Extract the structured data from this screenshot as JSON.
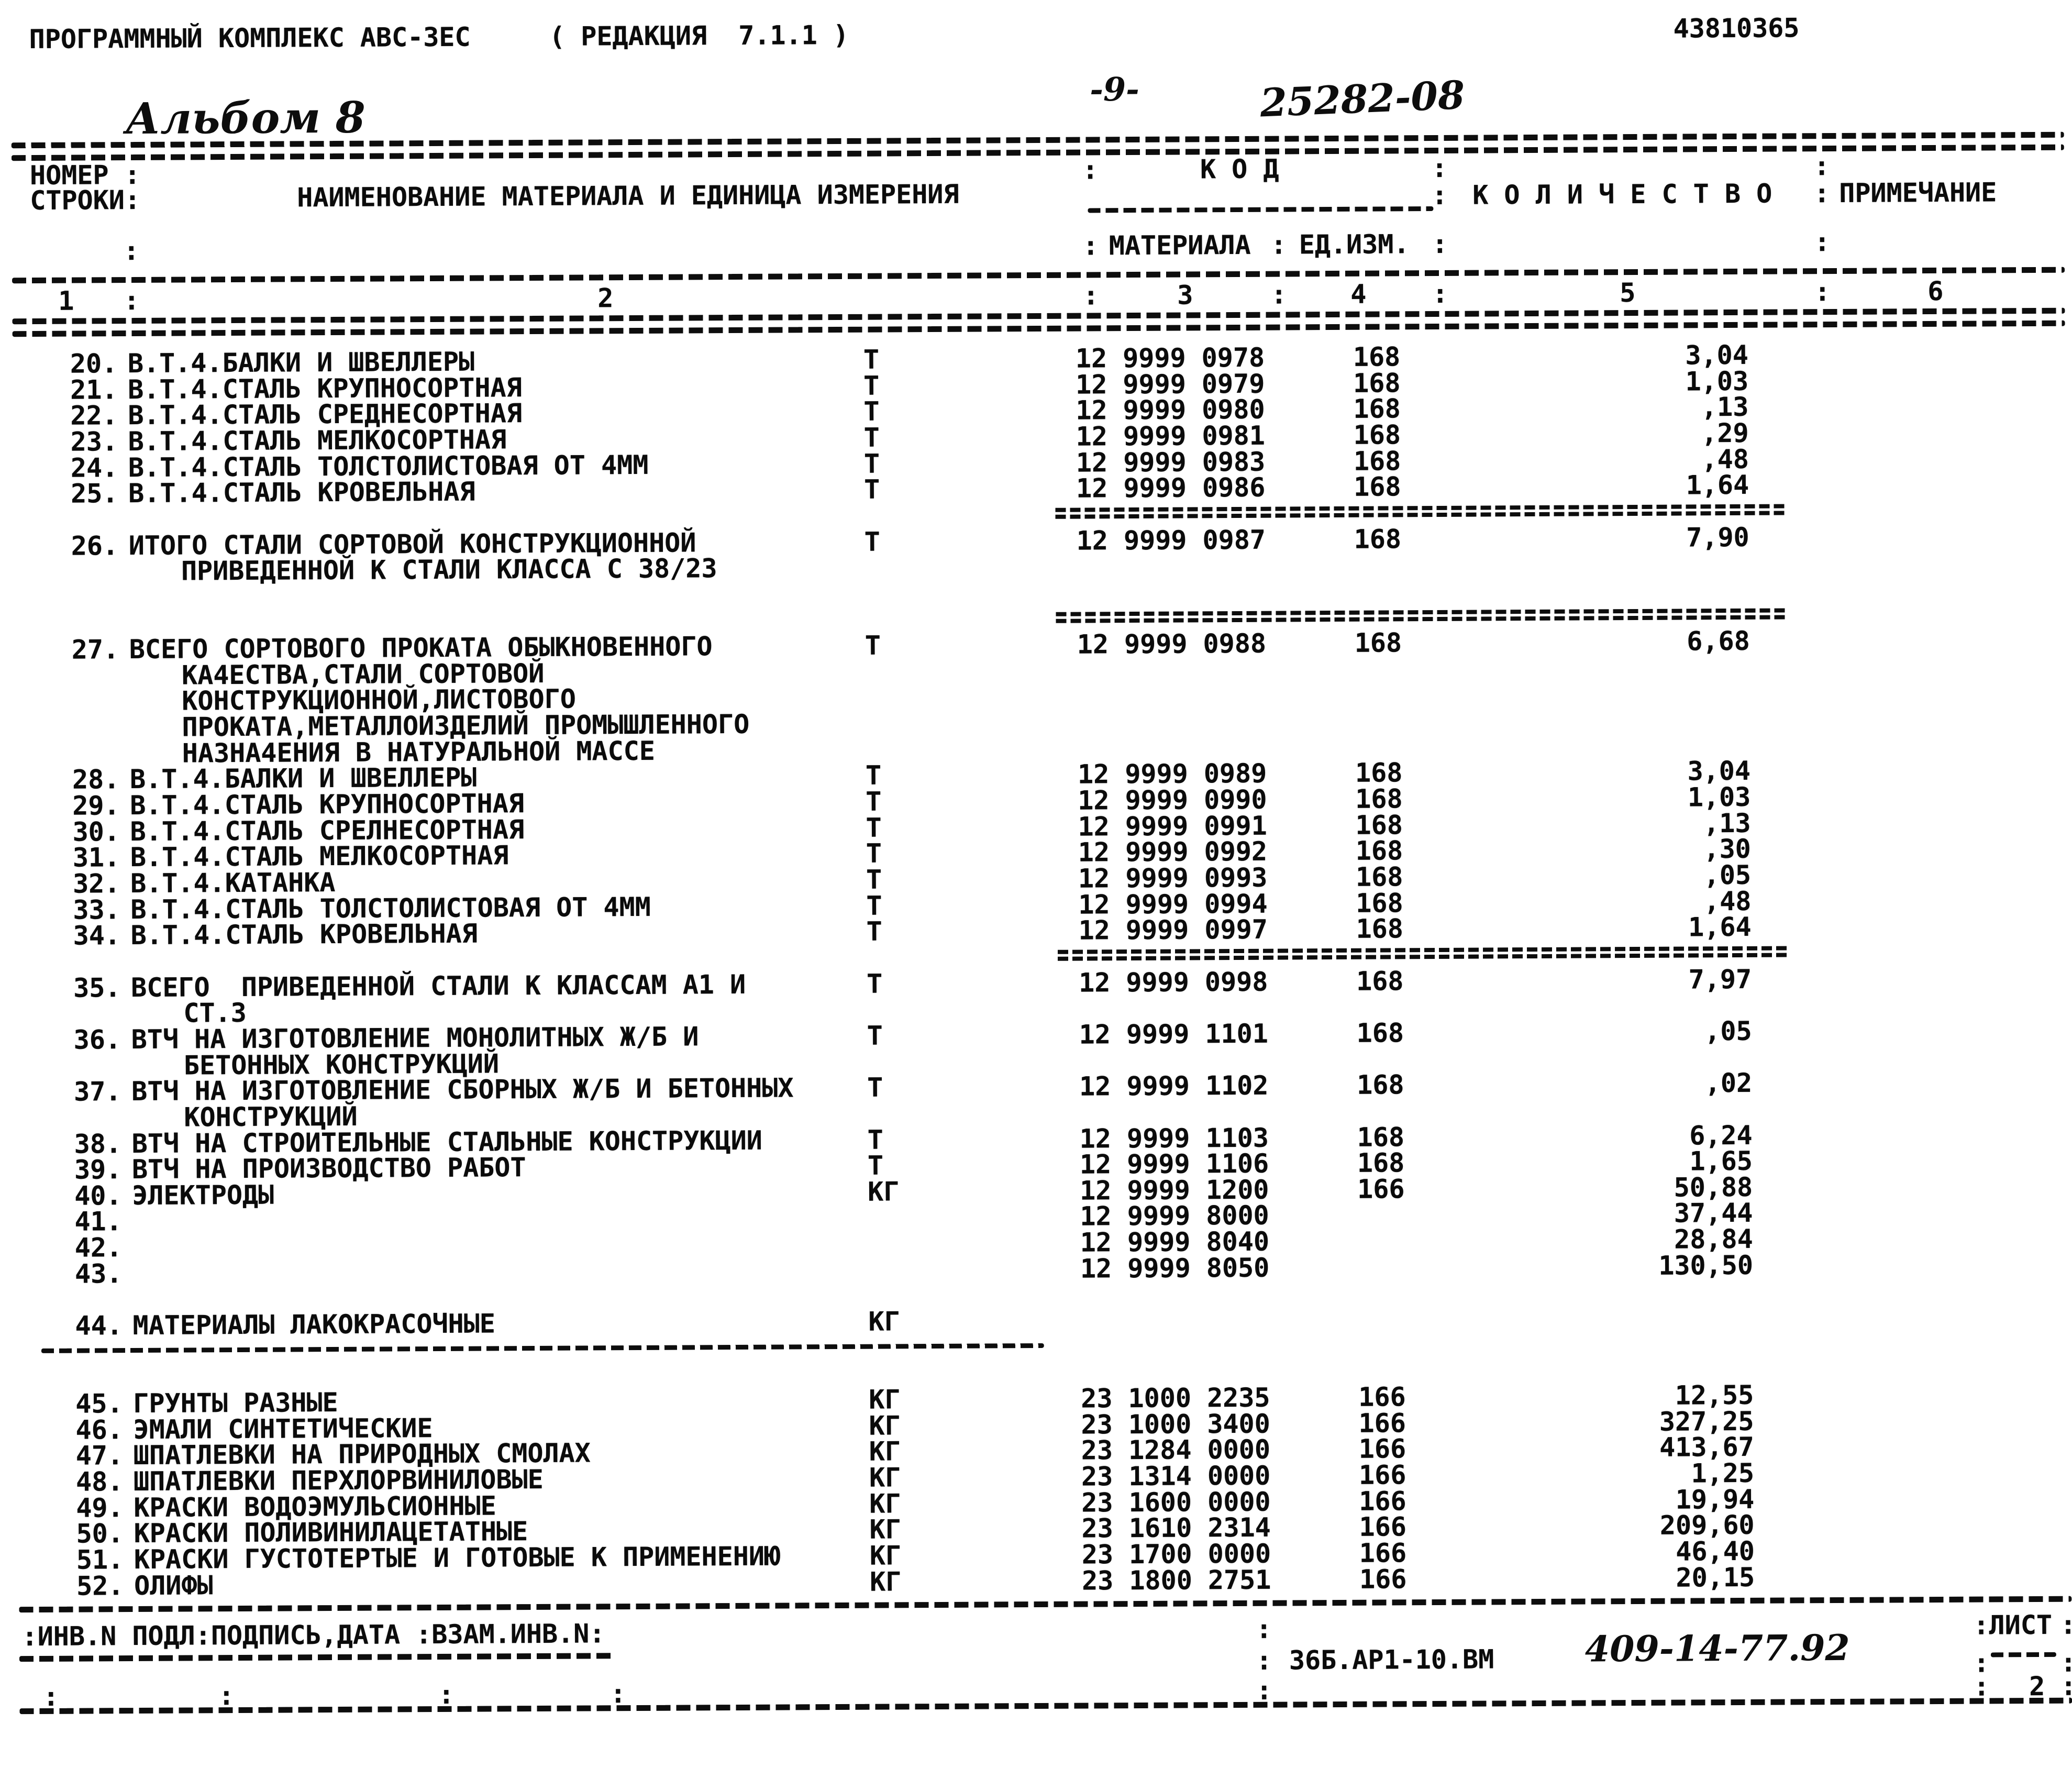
{
  "glyphs": {
    "colon": ":"
  },
  "header": {
    "title": "ПРОГРАММНЫЙ КОМПЛЕКС АВС-3ЕС     ( РЕДАКЦИЯ  7.1.1 )",
    "doc_number": "43810365",
    "album_note": "Альбом 8",
    "page_note": "-9-",
    "code_note": "25282-08"
  },
  "table_header": {
    "rownum_line1": "НОМЕР :",
    "rownum_line2": "СТРОКИ:",
    "name_col": "НАИМЕНОВАНИЕ МАТЕРИАЛА И ЕДИНИЦА ИЗМЕРЕНИЯ",
    "code_group": "К О Д",
    "code_material": "МАТЕРИАЛА",
    "code_unit": "ЕД.ИЗМ.",
    "quantity_col": "К О Л И Ч Е С Т В О",
    "note_col": "ПРИМЕЧАНИЕ",
    "col_numbers": [
      "1",
      "2",
      "3",
      "4",
      "5",
      "6"
    ]
  },
  "table_lines": [
    {
      "t": "row",
      "num": "20.",
      "name": "В.Т.4.БАЛКИ И ШВЕЛЛЕРЫ",
      "unit": "Т",
      "code": "12 9999 0978",
      "uc": "168",
      "qty": "3,04"
    },
    {
      "t": "row",
      "num": "21.",
      "name": "В.Т.4.СТАЛЬ КРУПНОСОРТНАЯ",
      "unit": "Т",
      "code": "12 9999 0979",
      "uc": "168",
      "qty": "1,03"
    },
    {
      "t": "row",
      "num": "22.",
      "name": "В.Т.4.СТАЛЬ СРЕДНЕСОРТНАЯ",
      "unit": "Т",
      "code": "12 9999 0980",
      "uc": "168",
      "qty": ",13"
    },
    {
      "t": "row",
      "num": "23.",
      "name": "В.Т.4.СТАЛЬ МЕЛКОСОРТНАЯ",
      "unit": "Т",
      "code": "12 9999 0981",
      "uc": "168",
      "qty": ",29"
    },
    {
      "t": "row",
      "num": "24.",
      "name": "В.Т.4.СТАЛЬ ТОЛСТОЛИСТОВАЯ ОТ 4ММ",
      "unit": "Т",
      "code": "12 9999 0983",
      "uc": "168",
      "qty": ",48"
    },
    {
      "t": "row",
      "num": "25.",
      "name": "В.Т.4.СТАЛЬ КРОВЕЛЬНАЯ",
      "unit": "Т",
      "code": "12 9999 0986",
      "uc": "168",
      "qty": "1,64"
    },
    {
      "t": "eq"
    },
    {
      "t": "row",
      "num": "26.",
      "name": "ИТОГО СТАЛИ СОРТОВОЙ КОНСТРУКЦИОННОЙ",
      "unit": "Т",
      "code": "12 9999 0987",
      "uc": "168",
      "qty": "7,90"
    },
    {
      "t": "cont",
      "name": "ПРИВЕДЕННОЙ К СТАЛИ КЛАССА С 38/23"
    },
    {
      "t": "blank"
    },
    {
      "t": "eq"
    },
    {
      "t": "row",
      "num": "27.",
      "name": "ВСЕГО СОРТОВОГО ПРОКАТА ОБЫКНОВЕННОГО",
      "unit": "Т",
      "code": "12 9999 0988",
      "uc": "168",
      "qty": "6,68"
    },
    {
      "t": "cont",
      "name": "КА4ЕСТВА,СТАЛИ СОРТОВОЙ"
    },
    {
      "t": "cont",
      "name": "КОНСТРУКЦИОННОЙ,ЛИСТОВОГО"
    },
    {
      "t": "cont",
      "name": "ПРОКАТА,МЕТАЛЛОИЗДЕЛИЙ ПРОМЫШЛЕННОГО"
    },
    {
      "t": "cont",
      "name": "НАЗНА4ЕНИЯ В НАТУРАЛЬНОЙ МАССЕ"
    },
    {
      "t": "row",
      "num": "28.",
      "name": "В.Т.4.БАЛКИ И ШВЕЛЛЕРЫ",
      "unit": "Т",
      "code": "12 9999 0989",
      "uc": "168",
      "qty": "3,04"
    },
    {
      "t": "row",
      "num": "29.",
      "name": "В.Т.4.СТАЛЬ КРУПНОСОРТНАЯ",
      "unit": "Т",
      "code": "12 9999 0990",
      "uc": "168",
      "qty": "1,03"
    },
    {
      "t": "row",
      "num": "30.",
      "name": "В.Т.4.СТАЛЬ СРЕЛНЕСОРТНАЯ",
      "unit": "Т",
      "code": "12 9999 0991",
      "uc": "168",
      "qty": ",13"
    },
    {
      "t": "row",
      "num": "31.",
      "name": "В.Т.4.СТАЛЬ МЕЛКОСОРТНАЯ",
      "unit": "Т",
      "code": "12 9999 0992",
      "uc": "168",
      "qty": ",30"
    },
    {
      "t": "row",
      "num": "32.",
      "name": "В.Т.4.КАТАНКА",
      "unit": "Т",
      "code": "12 9999 0993",
      "uc": "168",
      "qty": ",05"
    },
    {
      "t": "row",
      "num": "33.",
      "name": "В.Т.4.СТАЛЬ ТОЛСТОЛИСТОВАЯ ОТ 4ММ",
      "unit": "Т",
      "code": "12 9999 0994",
      "uc": "168",
      "qty": ",48"
    },
    {
      "t": "row",
      "num": "34.",
      "name": "В.Т.4.СТАЛЬ КРОВЕЛЬНАЯ",
      "unit": "Т",
      "code": "12 9999 0997",
      "uc": "168",
      "qty": "1,64"
    },
    {
      "t": "eq"
    },
    {
      "t": "row",
      "num": "35.",
      "name": "ВСЕГО  ПРИВЕДЕННОЙ СТАЛИ К КЛАССАМ А1 И",
      "unit": "Т",
      "code": "12 9999 0998",
      "uc": "168",
      "qty": "7,97"
    },
    {
      "t": "cont",
      "name": "СТ.3"
    },
    {
      "t": "row",
      "num": "36.",
      "name": "ВТЧ НА ИЗГОТОВЛЕНИЕ МОНОЛИТНЫХ Ж/Б И",
      "unit": "Т",
      "code": "12 9999 1101",
      "uc": "168",
      "qty": ",05"
    },
    {
      "t": "cont",
      "name": "БЕТОННЫХ КОНСТРУКЦИЙ"
    },
    {
      "t": "row",
      "num": "37.",
      "name": "ВТЧ НА ИЗГОТОВЛЕНИЕ СБОРНЫХ Ж/Б И БЕТОННЫХ",
      "unit": "Т",
      "code": "12 9999 1102",
      "uc": "168",
      "qty": ",02"
    },
    {
      "t": "cont",
      "name": "КОНСТРУКЦИЙ"
    },
    {
      "t": "row",
      "num": "38.",
      "name": "ВТЧ НА СТРОИТЕЛЬНЫЕ СТАЛЬНЫЕ КОНСТРУКЦИИ",
      "unit": "Т",
      "code": "12 9999 1103",
      "uc": "168",
      "qty": "6,24"
    },
    {
      "t": "row",
      "num": "39.",
      "name": "ВТЧ НА ПРОИЗВОДСТВО РАБОТ",
      "unit": "Т",
      "code": "12 9999 1106",
      "uc": "168",
      "qty": "1,65"
    },
    {
      "t": "row",
      "num": "40.",
      "name": "ЭЛЕКТРОДЫ",
      "unit": "КГ",
      "code": "12 9999 1200",
      "uc": "166",
      "qty": "50,88"
    },
    {
      "t": "row",
      "num": "41.",
      "name": "",
      "unit": "",
      "code": "12 9999 8000",
      "uc": "",
      "qty": "37,44"
    },
    {
      "t": "row",
      "num": "42.",
      "name": "",
      "unit": "",
      "code": "12 9999 8040",
      "uc": "",
      "qty": "28,84"
    },
    {
      "t": "row",
      "num": "43.",
      "name": "",
      "unit": "",
      "code": "12 9999 8050",
      "uc": "",
      "qty": "130,50"
    },
    {
      "t": "blank"
    },
    {
      "t": "row",
      "num": "44.",
      "name": "МАТЕРИАЛЫ ЛАКОКРАСОЧНЫЕ",
      "unit": "КГ",
      "code": "",
      "uc": "",
      "qty": ""
    },
    {
      "t": "dash"
    },
    {
      "t": "blank"
    },
    {
      "t": "row",
      "num": "45.",
      "name": "ГРУНТЫ РАЗНЫЕ",
      "unit": "КГ",
      "code": "23 1000 2235",
      "uc": "166",
      "qty": "12,55"
    },
    {
      "t": "row",
      "num": "46.",
      "name": "ЭМАЛИ СИНТЕТИЧЕСКИЕ",
      "unit": "КГ",
      "code": "23 1000 3400",
      "uc": "166",
      "qty": "327,25"
    },
    {
      "t": "row",
      "num": "47.",
      "name": "ШПАТЛЕВКИ НА ПРИРОДНЫХ СМОЛАХ",
      "unit": "КГ",
      "code": "23 1284 0000",
      "uc": "166",
      "qty": "413,67"
    },
    {
      "t": "row",
      "num": "48.",
      "name": "ШПАТЛЕВКИ ПЕРХЛОРВИНИЛОВЫЕ",
      "unit": "КГ",
      "code": "23 1314 0000",
      "uc": "166",
      "qty": "1,25"
    },
    {
      "t": "row",
      "num": "49.",
      "name": "КРАСКИ ВОДОЭМУЛЬСИОННЫЕ",
      "unit": "КГ",
      "code": "23 1600 0000",
      "uc": "166",
      "qty": "19,94"
    },
    {
      "t": "row",
      "num": "50.",
      "name": "КРАСКИ ПОЛИВИНИЛАЦЕТАТНЫЕ",
      "unit": "КГ",
      "code": "23 1610 2314",
      "uc": "166",
      "qty": "209,60"
    },
    {
      "t": "row",
      "num": "51.",
      "name": "КРАСКИ ГУСТОТЕРТЫЕ И ГОТОВЫЕ К ПРИМЕНЕНИЮ",
      "unit": "КГ",
      "code": "23 1700 0000",
      "uc": "166",
      "qty": "46,40"
    },
    {
      "t": "row",
      "num": "52.",
      "name": "ОЛИФЫ",
      "unit": "КГ",
      "code": "23 1800 2751",
      "uc": "166",
      "qty": "20,15"
    }
  ],
  "footer": {
    "stamp": ":ИНВ.N ПОДЛ:ПОДПИСЬ,ДАТА :ВЗАМ.ИНВ.N:",
    "doc_code": "36Б.АР1-10.ВМ",
    "handwritten_code": "409-14-77.92",
    "sheet_label": "ЛИСТ",
    "sheet_number": "2"
  }
}
